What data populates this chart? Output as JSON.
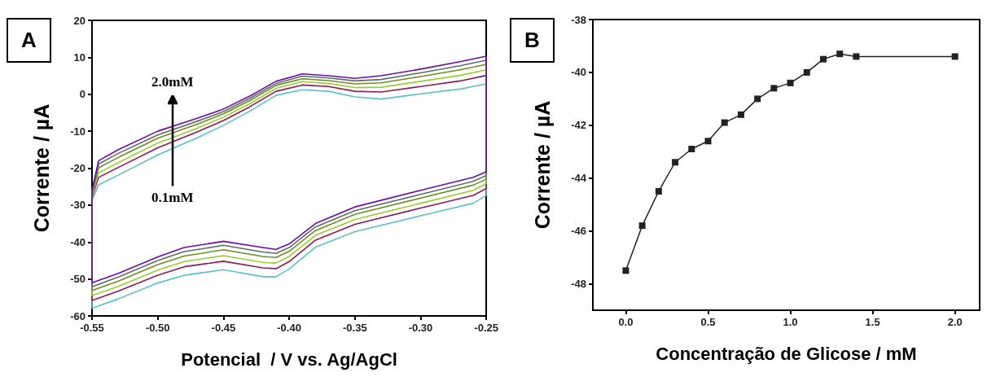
{
  "chart_data": [
    {
      "type": "line",
      "xlabel": "Potencial  / V vs. Ag/AgCl",
      "ylabel": "Corrente / µA",
      "marker": "none",
      "annotations": [
        "A",
        "2.0mM",
        "0.1mM"
      ],
      "xlim": [
        -0.55,
        -0.25
      ],
      "ylim": [
        -60,
        20
      ],
      "xticks": [
        {
          "value": -0.55,
          "label": "-0.55"
        },
        {
          "value": -0.5,
          "label": "-0.50"
        },
        {
          "value": -0.45,
          "label": "-0.45"
        },
        {
          "value": -0.4,
          "label": "-0.40"
        },
        {
          "value": -0.35,
          "label": "-0.35"
        },
        {
          "value": -0.3,
          "label": "-0.30"
        },
        {
          "value": -0.25,
          "label": "-0.25"
        }
      ],
      "yticks": [
        -60,
        -50,
        -40,
        -30,
        -20,
        -10,
        0,
        10,
        20
      ],
      "series": [
        {
          "color": "#5bc0c8",
          "x": [
            -0.55,
            -0.55,
            -0.545,
            -0.53,
            -0.5,
            -0.47,
            -0.45,
            -0.43,
            -0.41,
            -0.39,
            -0.37,
            -0.35,
            -0.33,
            -0.3,
            -0.27,
            -0.25,
            -0.25
          ],
          "values": [
            -57.9,
            -28.7,
            -24.5,
            -21.9,
            -16.4,
            -11.8,
            -8.4,
            -4.6,
            -0.3,
            1.2,
            0.8,
            -0.7,
            -1.3,
            0.1,
            1.4,
            2.8,
            -27.4
          ]
        },
        {
          "color": "#5bc0c8",
          "x": [
            -0.55,
            -0.53,
            -0.5,
            -0.48,
            -0.45,
            -0.42,
            -0.41,
            -0.4,
            -0.38,
            -0.35,
            -0.3,
            -0.26,
            -0.25
          ],
          "values": [
            -57.9,
            -55.4,
            -51.1,
            -49,
            -47.5,
            -49.4,
            -49.4,
            -47.3,
            -41.4,
            -37.2,
            -32.9,
            -29.5,
            -27.4
          ]
        },
        {
          "color": "#8b1a5a",
          "x": [
            -0.55,
            -0.55,
            -0.545,
            -0.53,
            -0.5,
            -0.47,
            -0.45,
            -0.43,
            -0.41,
            -0.39,
            -0.37,
            -0.35,
            -0.33,
            -0.3,
            -0.27,
            -0.25,
            -0.25
          ],
          "values": [
            -55.8,
            -27.9,
            -22.5,
            -19.8,
            -14.5,
            -10.2,
            -7.1,
            -3.4,
            0.8,
            2.5,
            2.1,
            0.8,
            0.6,
            2.1,
            3.6,
            5.1,
            -25.5
          ]
        },
        {
          "color": "#8b1a5a",
          "x": [
            -0.55,
            -0.53,
            -0.5,
            -0.48,
            -0.45,
            -0.42,
            -0.41,
            -0.4,
            -0.38,
            -0.35,
            -0.3,
            -0.26,
            -0.25
          ],
          "values": [
            -55.8,
            -53.3,
            -49,
            -46.7,
            -45.2,
            -47,
            -47.2,
            -45.3,
            -39.5,
            -35.2,
            -30.8,
            -27.4,
            -25.5
          ]
        },
        {
          "color": "#9acd32",
          "x": [
            -0.55,
            -0.55,
            -0.545,
            -0.53,
            -0.5,
            -0.47,
            -0.45,
            -0.43,
            -0.41,
            -0.39,
            -0.37,
            -0.35,
            -0.33,
            -0.3,
            -0.27,
            -0.25,
            -0.25
          ],
          "values": [
            -54.5,
            -27.4,
            -21.3,
            -18.5,
            -13.2,
            -9.2,
            -6.2,
            -2.6,
            1.6,
            3.4,
            2.9,
            1.8,
            1.9,
            3.5,
            5.1,
            6.6,
            -24.2
          ]
        },
        {
          "color": "#9acd32",
          "x": [
            -0.55,
            -0.53,
            -0.5,
            -0.48,
            -0.45,
            -0.42,
            -0.41,
            -0.4,
            -0.38,
            -0.35,
            -0.3,
            -0.26,
            -0.25
          ],
          "values": [
            -54.5,
            -52,
            -47.6,
            -45.3,
            -43.7,
            -45.5,
            -45.7,
            -43.9,
            -38.2,
            -33.9,
            -29.5,
            -26,
            -24.2
          ]
        },
        {
          "color": "#6b8e23",
          "x": [
            -0.55,
            -0.55,
            -0.545,
            -0.53,
            -0.5,
            -0.47,
            -0.45,
            -0.43,
            -0.41,
            -0.39,
            -0.37,
            -0.35,
            -0.33,
            -0.3,
            -0.27,
            -0.25,
            -0.25
          ],
          "values": [
            -53.1,
            -26.8,
            -19.9,
            -17.1,
            -11.9,
            -8.1,
            -5.3,
            -1.7,
            2.4,
            4.2,
            3.7,
            2.8,
            3.1,
            4.8,
            6.6,
            8.1,
            -23
          ]
        },
        {
          "color": "#6b8e23",
          "x": [
            -0.55,
            -0.53,
            -0.5,
            -0.48,
            -0.45,
            -0.42,
            -0.41,
            -0.4,
            -0.38,
            -0.35,
            -0.3,
            -0.26,
            -0.25
          ],
          "values": [
            -53.1,
            -50.6,
            -46.1,
            -43.8,
            -42.1,
            -43.9,
            -44.2,
            -42.5,
            -36.9,
            -32.5,
            -28.1,
            -24.6,
            -23
          ]
        },
        {
          "color": "#5a6e6e",
          "x": [
            -0.55,
            -0.55,
            -0.545,
            -0.53,
            -0.5,
            -0.47,
            -0.45,
            -0.43,
            -0.41,
            -0.39,
            -0.37,
            -0.35,
            -0.33,
            -0.3,
            -0.27,
            -0.25,
            -0.25
          ],
          "values": [
            -52.1,
            -26.4,
            -18.9,
            -16,
            -11,
            -7.3,
            -4.7,
            -1.1,
            2.9,
            4.9,
            4.4,
            3.6,
            4,
            5.8,
            7.7,
            9.2,
            -22
          ]
        },
        {
          "color": "#5a6e6e",
          "x": [
            -0.55,
            -0.53,
            -0.5,
            -0.48,
            -0.45,
            -0.42,
            -0.41,
            -0.4,
            -0.38,
            -0.35,
            -0.3,
            -0.26,
            -0.25
          ],
          "values": [
            -52.1,
            -49.5,
            -45,
            -42.6,
            -40.9,
            -42.7,
            -43.1,
            -41.5,
            -35.9,
            -31.5,
            -27.1,
            -23.6,
            -22
          ]
        },
        {
          "color": "#6a0dad",
          "x": [
            -0.55,
            -0.55,
            -0.545,
            -0.53,
            -0.5,
            -0.47,
            -0.45,
            -0.43,
            -0.41,
            -0.39,
            -0.37,
            -0.35,
            -0.33,
            -0.3,
            -0.27,
            -0.25,
            -0.25
          ],
          "values": [
            -51,
            -26,
            -18,
            -15,
            -10,
            -6.5,
            -4,
            -0.5,
            3.5,
            5.5,
            5,
            4.3,
            5,
            6.8,
            8.8,
            10.3,
            -21
          ]
        },
        {
          "color": "#6a0dad",
          "x": [
            -0.55,
            -0.53,
            -0.5,
            -0.48,
            -0.45,
            -0.42,
            -0.41,
            -0.4,
            -0.38,
            -0.35,
            -0.3,
            -0.26,
            -0.25
          ],
          "values": [
            -51,
            -48.5,
            -44,
            -41.5,
            -39.8,
            -41.5,
            -42,
            -40.5,
            -35,
            -30.5,
            -26,
            -22.5,
            -21
          ]
        }
      ]
    },
    {
      "type": "line",
      "xlabel": "Concentração de Glicose / mM",
      "ylabel": "Corrente / µA",
      "marker": "square",
      "annotations": [
        "B"
      ],
      "xlim": [
        -0.2,
        2.15
      ],
      "ylim": [
        -49,
        -38
      ],
      "xticks": [
        {
          "value": 0,
          "label": "0.0"
        },
        {
          "value": 0.5,
          "label": "0.5"
        },
        {
          "value": 1,
          "label": "1.0"
        },
        {
          "value": 1.5,
          "label": "1.5"
        },
        {
          "value": 2,
          "label": "2.0"
        }
      ],
      "yticks": [
        -48,
        -46,
        -44,
        -42,
        -40,
        -38
      ],
      "x": [
        0,
        0.1,
        0.2,
        0.3,
        0.4,
        0.5,
        0.6,
        0.7,
        0.8,
        0.9,
        1.0,
        1.1,
        1.2,
        1.3,
        1.4,
        2.0
      ],
      "series": [
        {
          "color": "#222222",
          "values": [
            -47.5,
            -45.8,
            -44.5,
            -43.4,
            -42.9,
            -42.6,
            -41.9,
            -41.6,
            -41.0,
            -40.6,
            -40.4,
            -40.0,
            -39.5,
            -39.3,
            -39.4,
            -39.4
          ]
        }
      ]
    }
  ]
}
